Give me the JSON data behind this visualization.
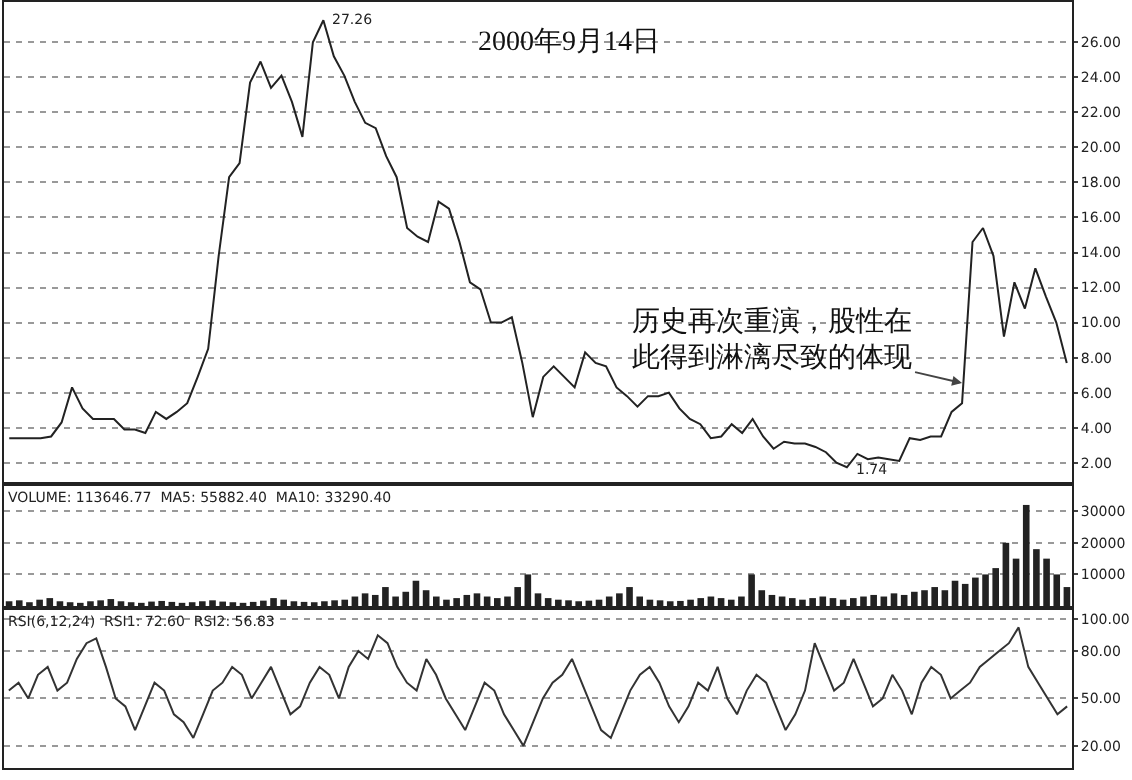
{
  "chart_data": [
    {
      "type": "line",
      "categories": [
        null,
        null,
        null,
        null,
        null,
        null,
        null,
        null,
        null,
        null,
        null,
        null,
        null,
        null,
        null,
        null,
        null,
        null,
        null,
        null,
        null,
        null,
        null,
        null,
        null,
        null,
        null,
        null,
        null,
        null,
        null,
        null,
        null,
        null,
        null,
        null,
        null,
        null,
        null,
        null,
        null,
        null,
        null,
        null,
        null,
        null,
        null,
        null,
        null,
        null,
        null,
        null,
        null,
        null,
        null,
        null,
        null,
        null,
        null,
        null,
        null,
        null,
        null,
        null,
        null,
        null,
        null,
        null,
        null,
        null,
        null,
        null,
        null,
        null,
        null,
        null,
        null,
        null,
        null,
        null,
        null,
        null,
        null,
        null,
        null,
        null,
        null,
        null,
        null,
        null,
        null,
        null,
        null,
        null,
        null,
        null,
        null,
        null,
        null,
        null,
        null,
        null
      ],
      "series": [
        {
          "color": "#222222",
          "values": [
            3.4,
            3.4,
            3.4,
            3.4,
            3.5,
            4.3,
            6.3,
            5.1,
            4.5,
            4.5,
            4.5,
            3.9,
            3.9,
            3.7,
            4.9,
            4.5,
            4.9,
            5.4,
            6.9,
            8.5,
            13.8,
            18.3,
            19.1,
            23.7,
            24.9,
            23.4,
            24.1,
            22.6,
            20.6,
            26.0,
            27.26,
            25.2,
            24.1,
            22.6,
            21.4,
            21.1,
            19.5,
            18.3,
            15.4,
            14.9,
            14.6,
            16.9,
            16.5,
            14.6,
            12.3,
            11.9,
            10.0,
            10.0,
            10.3,
            7.7,
            4.6,
            6.9,
            7.5,
            6.9,
            6.3,
            8.3,
            7.7,
            7.5,
            6.3,
            5.8,
            5.2,
            5.8,
            5.8,
            6.0,
            5.1,
            4.5,
            4.2,
            3.4,
            3.5,
            4.2,
            3.7,
            4.5,
            3.5,
            2.8,
            3.2,
            3.1,
            3.1,
            2.9,
            2.6,
            2.0,
            1.74,
            2.5,
            2.2,
            2.3,
            2.2,
            2.1,
            3.4,
            3.3,
            3.5,
            3.5,
            4.9,
            5.4,
            14.6,
            15.4,
            13.8,
            9.2,
            12.3,
            10.8,
            13.1,
            11.5,
            10.0,
            7.7
          ]
        }
      ],
      "ylim": [
        0.9,
        28.3
      ],
      "yticks": [
        {
          "value": 2,
          "label": "2.00"
        },
        {
          "value": 4,
          "label": "4.00"
        },
        {
          "value": 6,
          "label": "6.00"
        },
        {
          "value": 8,
          "label": "8.00"
        },
        {
          "value": 10,
          "label": "10.00"
        },
        {
          "value": 12,
          "label": "12.00"
        },
        {
          "value": 14,
          "label": "14.00"
        },
        {
          "value": 16,
          "label": "16.00"
        },
        {
          "value": 18,
          "label": "18.00"
        },
        {
          "value": 20,
          "label": "20.00"
        },
        {
          "value": 22,
          "label": "22.00"
        },
        {
          "value": 24,
          "label": "24.00"
        },
        {
          "value": 26,
          "label": "26.00"
        }
      ],
      "grid": "y",
      "tick_labels": "y",
      "annotations": [
        "27.26",
        "2000年9月14日",
        "1.74",
        "历史再次重演，股性在此得到淋漓尽致的体现"
      ]
    },
    {
      "type": "bar",
      "categories": [
        null,
        null,
        null,
        null,
        null,
        null,
        null,
        null,
        null,
        null,
        null,
        null,
        null,
        null,
        null,
        null,
        null,
        null,
        null,
        null,
        null,
        null,
        null,
        null,
        null,
        null,
        null,
        null,
        null,
        null,
        null,
        null,
        null,
        null,
        null,
        null,
        null,
        null,
        null,
        null,
        null,
        null,
        null,
        null,
        null,
        null,
        null,
        null,
        null,
        null,
        null,
        null,
        null,
        null,
        null,
        null,
        null,
        null,
        null,
        null,
        null,
        null,
        null,
        null,
        null,
        null,
        null,
        null,
        null,
        null,
        null,
        null,
        null,
        null,
        null,
        null,
        null,
        null,
        null,
        null,
        null,
        null,
        null,
        null,
        null,
        null,
        null,
        null,
        null,
        null,
        null,
        null,
        null,
        null,
        null,
        null,
        null,
        null,
        null,
        null,
        null,
        null,
        null,
        null,
        null
      ],
      "series": [
        {
          "color": "#222222",
          "values": [
            1500,
            1800,
            1200,
            2000,
            2500,
            1500,
            1200,
            1000,
            1500,
            1800,
            2200,
            1500,
            1200,
            1000,
            1400,
            1600,
            1300,
            1000,
            1200,
            1500,
            1800,
            1400,
            1200,
            1000,
            1300,
            1700,
            2500,
            2000,
            1500,
            1300,
            1200,
            1500,
            1800,
            2000,
            3000,
            4000,
            3500,
            6000,
            3000,
            4500,
            8000,
            5000,
            3000,
            2000,
            2500,
            3500,
            4000,
            3000,
            2500,
            3000,
            6000,
            10000,
            4000,
            2500,
            2000,
            1800,
            1500,
            1700,
            2000,
            3000,
            4000,
            6000,
            3000,
            2000,
            1800,
            1500,
            1600,
            2000,
            2500,
            3000,
            2500,
            2000,
            3000,
            10000,
            5000,
            3500,
            3000,
            2500,
            2000,
            2500,
            3000,
            2500,
            2000,
            2500,
            3000,
            3500,
            3000,
            4000,
            3500,
            4500,
            5000,
            6000,
            5000,
            8000,
            7000,
            9000,
            10000,
            12000,
            20000,
            15000,
            32000,
            18000,
            15000,
            10000,
            6000
          ]
        }
      ],
      "ylim": [
        0,
        38000
      ],
      "yticks": [
        10000,
        20000,
        30000
      ],
      "grid": "y",
      "tick_labels": "y",
      "annotations": [
        "VOLUME: 113646.77  MA5: 55882.40  MA10: 33290.40"
      ]
    },
    {
      "type": "line",
      "categories": [
        null,
        null,
        null,
        null,
        null,
        null,
        null,
        null,
        null,
        null,
        null,
        null,
        null,
        null,
        null,
        null,
        null,
        null,
        null,
        null,
        null,
        null,
        null,
        null,
        null,
        null,
        null,
        null,
        null,
        null,
        null,
        null,
        null,
        null,
        null,
        null,
        null,
        null,
        null,
        null,
        null,
        null,
        null,
        null,
        null,
        null,
        null,
        null,
        null,
        null,
        null,
        null,
        null,
        null,
        null,
        null,
        null,
        null,
        null,
        null,
        null,
        null,
        null,
        null,
        null,
        null,
        null,
        null,
        null,
        null,
        null,
        null,
        null,
        null,
        null,
        null,
        null,
        null,
        null,
        null,
        null,
        null,
        null,
        null,
        null,
        null,
        null,
        null,
        null,
        null,
        null,
        null,
        null,
        null,
        null,
        null,
        null,
        null,
        null,
        null,
        null,
        null,
        null,
        null,
        null,
        null,
        null,
        null,
        null,
        null
      ],
      "series": [
        {
          "color": "#333333",
          "values": [
            55,
            60,
            50,
            65,
            70,
            55,
            60,
            75,
            85,
            88,
            70,
            50,
            45,
            30,
            45,
            60,
            55,
            40,
            35,
            25,
            40,
            55,
            60,
            70,
            65,
            50,
            60,
            70,
            55,
            40,
            45,
            60,
            70,
            65,
            50,
            70,
            80,
            75,
            90,
            85,
            70,
            60,
            55,
            75,
            65,
            50,
            40,
            30,
            45,
            60,
            55,
            40,
            30,
            20,
            35,
            50,
            60,
            65,
            75,
            60,
            45,
            30,
            25,
            40,
            55,
            65,
            70,
            60,
            45,
            35,
            45,
            60,
            55,
            70,
            50,
            40,
            55,
            65,
            60,
            45,
            30,
            40,
            55,
            85,
            70,
            55,
            60,
            75,
            60,
            45,
            50,
            65,
            55,
            40,
            60,
            70,
            65,
            50,
            55,
            60,
            70,
            75,
            80,
            85,
            95,
            70,
            60,
            50,
            40,
            45
          ]
        }
      ],
      "ylim": [
        6,
        106
      ],
      "yticks": [
        {
          "value": 20,
          "label": "20.00"
        },
        {
          "value": 50,
          "label": "50.00"
        },
        {
          "value": 80,
          "label": "80.00"
        },
        {
          "value": 100,
          "label": "100.00"
        }
      ],
      "grid": "y",
      "tick_labels": "y",
      "annotations": [
        "RSI(6,12,24)  RSI1: 72.60  RSI2: 56.83"
      ]
    }
  ]
}
